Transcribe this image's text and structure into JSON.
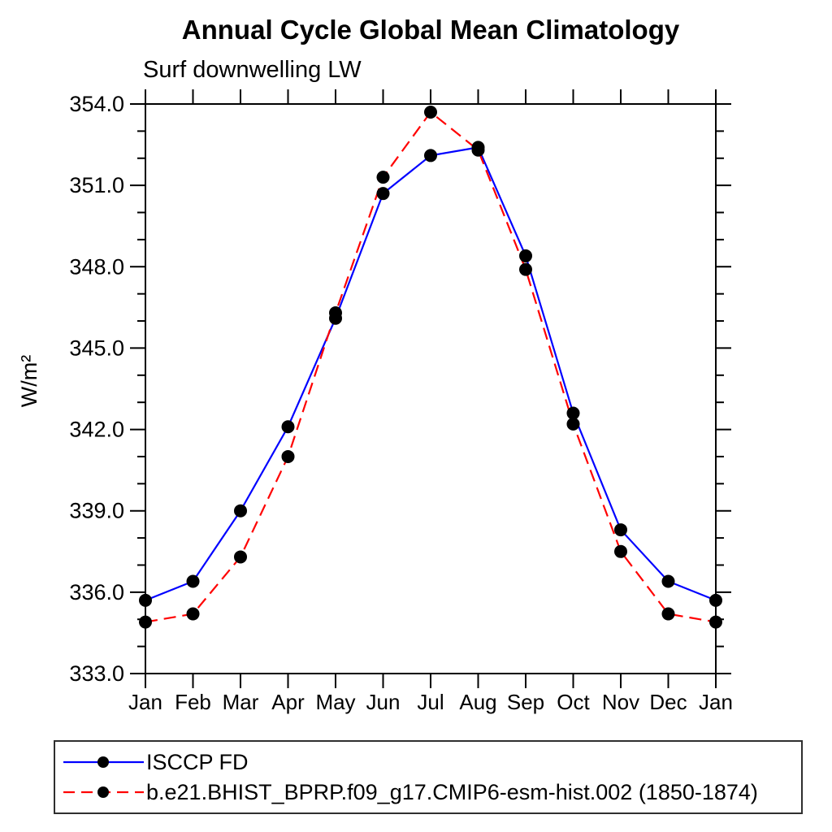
{
  "page": {
    "background": "#ffffff"
  },
  "chart_data": {
    "type": "line",
    "title": "Annual Cycle Global Mean Climatology",
    "subtitle": "Surf downwelling LW",
    "ylabel": "W/m²",
    "xlabel": "",
    "x_tick_labels": [
      "Jan",
      "Feb",
      "Mar",
      "Apr",
      "May",
      "Jun",
      "Jul",
      "Aug",
      "Sep",
      "Oct",
      "Nov",
      "Dec",
      "Jan"
    ],
    "ylim": [
      333.0,
      354.0
    ],
    "y_tick_labels": [
      "333.0",
      "336.0",
      "339.0",
      "342.0",
      "345.0",
      "348.0",
      "351.0",
      "354.0"
    ],
    "y_major_tick_step": 3.0,
    "y_minor_tick_step": 1.0,
    "grid": false,
    "legend_position": "bottom-left box",
    "axis_color": "#000000",
    "marker_shape": "filled-circle",
    "series": [
      {
        "name": "ISCCP FD",
        "color": "#0000ff",
        "line_style": "solid",
        "marker_color": "#000000",
        "values": [
          335.7,
          336.4,
          339.0,
          342.1,
          346.1,
          350.7,
          352.1,
          352.4,
          348.4,
          342.6,
          338.3,
          336.4,
          335.7
        ]
      },
      {
        "name": "b.e21.BHIST_BPRP.f09_g17.CMIP6-esm-hist.002 (1850-1874)",
        "color": "#ff0000",
        "line_style": "dashed",
        "marker_color": "#000000",
        "values": [
          334.9,
          335.2,
          337.3,
          341.0,
          346.3,
          351.3,
          353.7,
          352.3,
          347.9,
          342.2,
          337.5,
          335.2,
          334.9
        ]
      }
    ]
  }
}
